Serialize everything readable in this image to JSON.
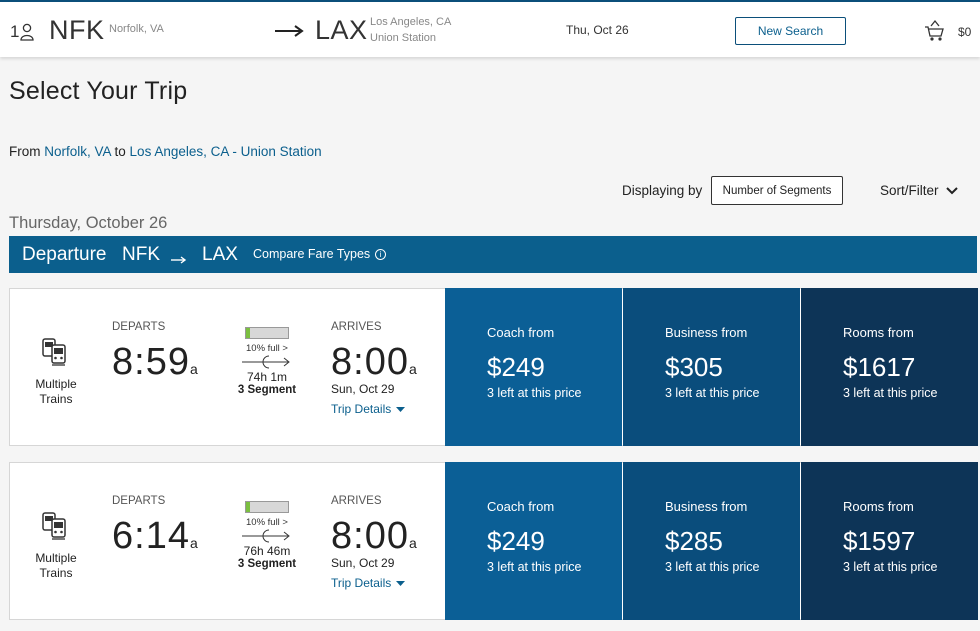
{
  "header": {
    "passengers": "1",
    "origin_code": "NFK",
    "origin_city": "Norfolk, VA",
    "destination_code": "LAX",
    "destination_city_line1": "Los Angeles, CA",
    "destination_city_line2": "Union Station",
    "date": "Thu, Oct 26",
    "new_search_label": "New Search",
    "cart_total": "$0"
  },
  "page_title": "Select Your Trip",
  "route_summary": {
    "from_prefix": "From ",
    "from_link": "Norfolk, VA",
    "to_prefix": " to ",
    "to_link": "Los Angeles, CA - Union Station"
  },
  "controls": {
    "displaying_by_label": "Displaying by",
    "segments_button": "Number of Segments",
    "sort_filter_label": "Sort/Filter"
  },
  "day_label": "Thursday, October 26",
  "departure_bar": {
    "label": "Departure",
    "from": "NFK",
    "to": "LAX",
    "compare_label": "Compare Fare Types",
    "info_glyph": "i"
  },
  "trips": [
    {
      "train_type": "Multiple Trains",
      "departs_label": "DEPARTS",
      "departs_time": "8:59",
      "departs_ampm": "a",
      "fullness_text": "10% full >",
      "fullness_pct": 10,
      "duration": "74h 1m",
      "segments": "3 Segment",
      "arrives_label": "ARRIVES",
      "arrives_time": "8:00",
      "arrives_ampm": "a",
      "arrives_date": "Sun, Oct 29",
      "trip_details_label": "Trip Details",
      "fares": [
        {
          "name": "Coach from",
          "price": "$249",
          "left": "3 left at this price"
        },
        {
          "name": "Business from",
          "price": "$305",
          "left": "3 left at this price"
        },
        {
          "name": "Rooms from",
          "price": "$1617",
          "left": "3 left at this price"
        }
      ]
    },
    {
      "train_type": "Multiple Trains",
      "departs_label": "DEPARTS",
      "departs_time": "6:14",
      "departs_ampm": "a",
      "fullness_text": "10% full >",
      "fullness_pct": 10,
      "duration": "76h 46m",
      "segments": "3 Segment",
      "arrives_label": "ARRIVES",
      "arrives_time": "8:00",
      "arrives_ampm": "a",
      "arrives_date": "Sun, Oct 29",
      "trip_details_label": "Trip Details",
      "fares": [
        {
          "name": "Coach from",
          "price": "$249",
          "left": "3 left at this price"
        },
        {
          "name": "Business from",
          "price": "$285",
          "left": "3 left at this price"
        },
        {
          "name": "Rooms from",
          "price": "$1597",
          "left": "3 left at this price"
        }
      ]
    }
  ]
}
